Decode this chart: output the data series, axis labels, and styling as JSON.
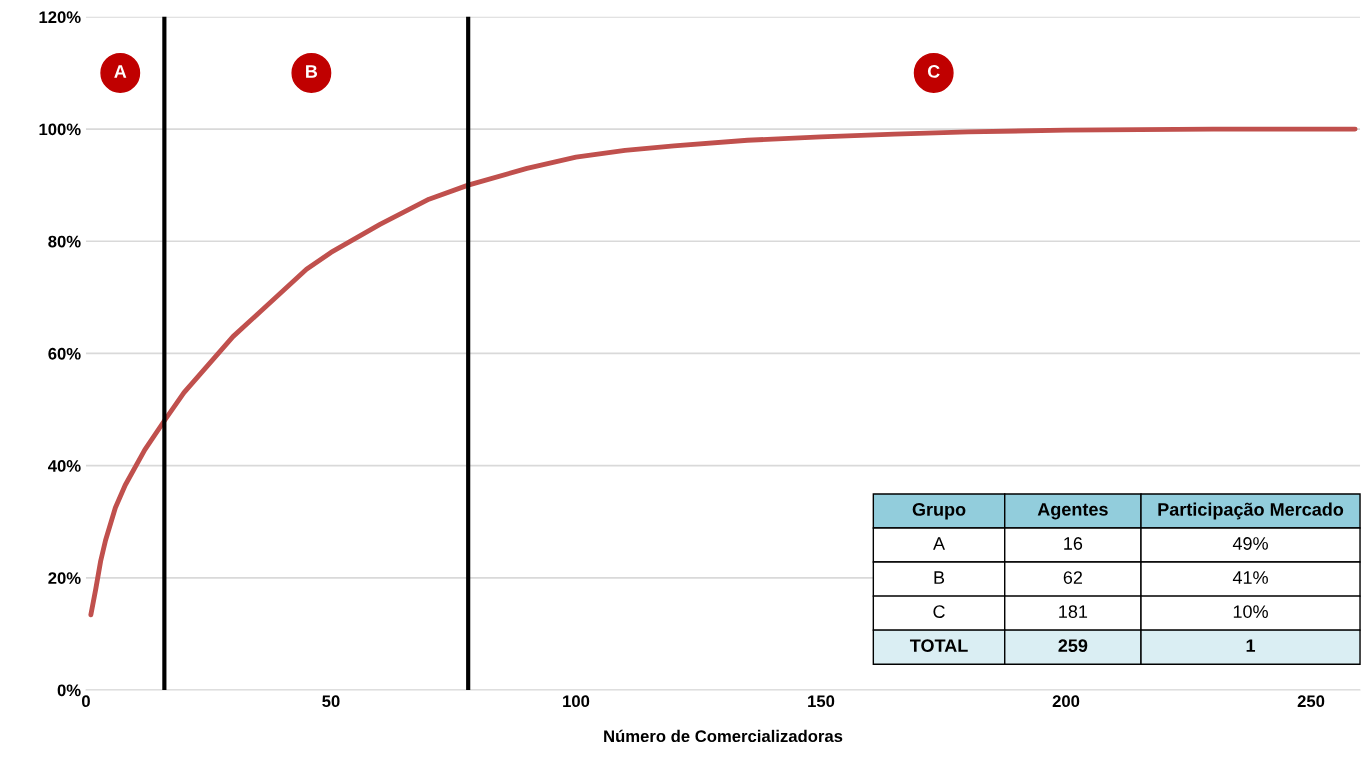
{
  "chart_data": [
    {
      "type": "line",
      "xlabel": "Número de Comercializadoras",
      "x": [
        1,
        2,
        3,
        4,
        6,
        8,
        12,
        16,
        20,
        25,
        30,
        35,
        40,
        45,
        50,
        60,
        70,
        78,
        90,
        100,
        110,
        120,
        135,
        150,
        165,
        180,
        200,
        230,
        259
      ],
      "series": [
        {
          "color": "#c0504d",
          "values": [
            13.4,
            18,
            23,
            26.7,
            32.5,
            36.5,
            42.8,
            48,
            53,
            58,
            63,
            67,
            71,
            75,
            78,
            83,
            87.5,
            90,
            93,
            95,
            96.2,
            97,
            98,
            98.6,
            99.1,
            99.5,
            99.8,
            100,
            100
          ]
        }
      ],
      "xlim": [
        0,
        260
      ],
      "xticks": [
        0,
        50,
        100,
        150,
        200,
        250
      ],
      "ylim": [
        0,
        120
      ],
      "yticks": [
        {
          "value": 0,
          "label": "0%"
        },
        {
          "value": 20,
          "label": "20%"
        },
        {
          "value": 40,
          "label": "40%"
        },
        {
          "value": 60,
          "label": "60%"
        },
        {
          "value": 80,
          "label": "80%"
        },
        {
          "value": 100,
          "label": "100%"
        },
        {
          "value": 120,
          "label": "120%"
        }
      ],
      "grid": "y",
      "marker": "none",
      "line_style": "solid",
      "legend": false,
      "ref_lines": [
        {
          "axis": "x",
          "value": 16,
          "color": "#000000"
        },
        {
          "axis": "x",
          "value": 78,
          "color": "#000000"
        }
      ],
      "annotations": [
        {
          "text": "A",
          "x": 7,
          "y": 110
        },
        {
          "text": "B",
          "x": 46,
          "y": 110
        },
        {
          "text": "C",
          "x": 173,
          "y": 110
        }
      ]
    },
    {
      "type": "other",
      "categories": [
        "Grupo",
        "Agentes",
        "Participação Mercado"
      ],
      "annotations": [
        "A",
        "16",
        "49%",
        "B",
        "62",
        "41%",
        "C",
        "181",
        "10%",
        "TOTAL",
        "259",
        "1"
      ]
    }
  ]
}
